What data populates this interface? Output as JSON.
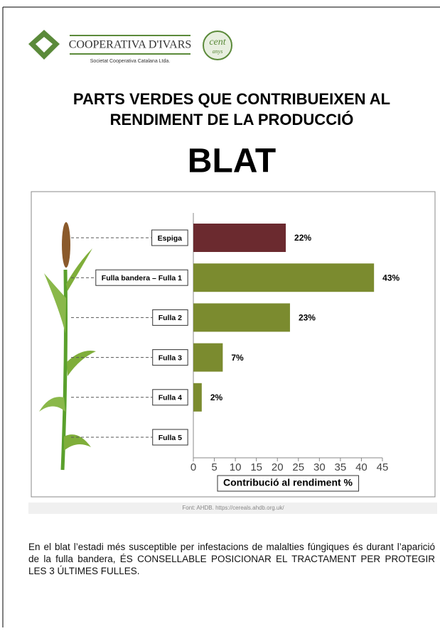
{
  "header": {
    "name": "COOPERATIVA D'IVARS",
    "tagline": "Societat Cooperativa Catalana Ltda.",
    "badge": [
      "cent",
      "anys"
    ]
  },
  "title": [
    "PARTS VERDES QUE CONTRIBUEIXEN AL",
    "RENDIMENT DE LA PRODUCCIÓ"
  ],
  "subtitle": "BLAT",
  "chart_data": {
    "type": "hbar",
    "categories": [
      "Espiga",
      "Fulla bandera – Fulla 1",
      "Fulla 2",
      "Fulla 3",
      "Fulla 4",
      "Fulla 5"
    ],
    "values": [
      22,
      43,
      23,
      7,
      2,
      null
    ],
    "value_labels": [
      "22%",
      "43%",
      "23%",
      "7%",
      "2%",
      null
    ],
    "colors": [
      "#6b2a2f",
      "#7b8b2f",
      "#7b8b2f",
      "#7b8b2f",
      "#7b8b2f",
      "#7b8b2f"
    ],
    "xlim": [
      0,
      45
    ],
    "xticks": [
      0,
      5,
      10,
      15,
      20,
      25,
      30,
      35,
      40,
      45
    ],
    "xlabel": "Contribució al rendiment %"
  },
  "source": "Font: AHDB. https://cereals.ahdb.org.uk/",
  "body_text": "En el blat l’estadi més susceptible per infestacions de malalties fúngiques és durant l’aparició de la fulla bandera, ÉS CONSELLABLE POSICIONAR EL TRACTAMENT PER PROTEGIR LES 3 ÚLTIMES FULLES."
}
